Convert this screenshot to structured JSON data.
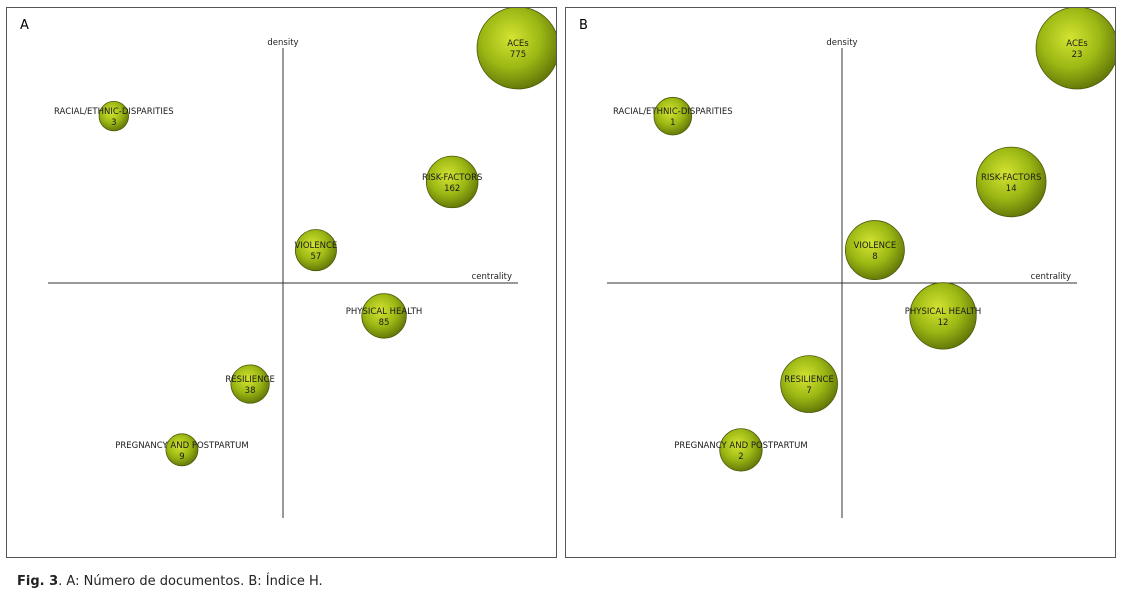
{
  "caption": {
    "label": "Fig. 3",
    "text": ". A: Número de documentos. B: Índice H."
  },
  "colors": {
    "bubble_light": "#d4e432",
    "bubble_mid": "#9cb814",
    "bubble_dark": "#5f7408",
    "bubble_stroke": "#4a5a08",
    "axis": "#333333"
  },
  "chart_data": [
    {
      "type": "scatter",
      "panel_label": "A",
      "xlabel": "centrality",
      "ylabel": "density",
      "xlim": [
        -1,
        1
      ],
      "ylim": [
        -1,
        1
      ],
      "points": [
        {
          "name": "ACEs",
          "value": "775",
          "x": 1.0,
          "y": 1.0,
          "size": 775
        },
        {
          "name": "RACIAL/ETHNIC-DISPARITIES",
          "value": "3",
          "x": -0.72,
          "y": 0.71,
          "size": 3
        },
        {
          "name": "RISK-FACTORS",
          "value": "162",
          "x": 0.72,
          "y": 0.43,
          "size": 162
        },
        {
          "name": "VIOLENCE",
          "value": "57",
          "x": 0.14,
          "y": 0.14,
          "size": 57
        },
        {
          "name": "PHYSICAL HEALTH",
          "value": "85",
          "x": 0.43,
          "y": -0.14,
          "size": 85
        },
        {
          "name": "RESILIENCE",
          "value": "38",
          "x": -0.14,
          "y": -0.43,
          "size": 38
        },
        {
          "name": "PREGNANCY AND POSTPARTUM",
          "value": "9",
          "x": -0.43,
          "y": -0.71,
          "size": 9
        }
      ]
    },
    {
      "type": "scatter",
      "panel_label": "B",
      "xlabel": "centrality",
      "ylabel": "density",
      "xlim": [
        -1,
        1
      ],
      "ylim": [
        -1,
        1
      ],
      "points": [
        {
          "name": "ACEs",
          "value": "23",
          "x": 1.0,
          "y": 1.0,
          "size": 23
        },
        {
          "name": "RACIAL/ETHNIC-DISPARITIES",
          "value": "1",
          "x": -0.72,
          "y": 0.71,
          "size": 1
        },
        {
          "name": "RISK-FACTORS",
          "value": "14",
          "x": 0.72,
          "y": 0.43,
          "size": 14
        },
        {
          "name": "VIOLENCE",
          "value": "8",
          "x": 0.14,
          "y": 0.14,
          "size": 8
        },
        {
          "name": "PHYSICAL HEALTH",
          "value": "12",
          "x": 0.43,
          "y": -0.14,
          "size": 12
        },
        {
          "name": "RESILIENCE",
          "value": "7",
          "x": -0.14,
          "y": -0.43,
          "size": 7
        },
        {
          "name": "PREGNANCY AND POSTPARTUM",
          "value": "2",
          "x": -0.43,
          "y": -0.71,
          "size": 2
        }
      ]
    }
  ]
}
